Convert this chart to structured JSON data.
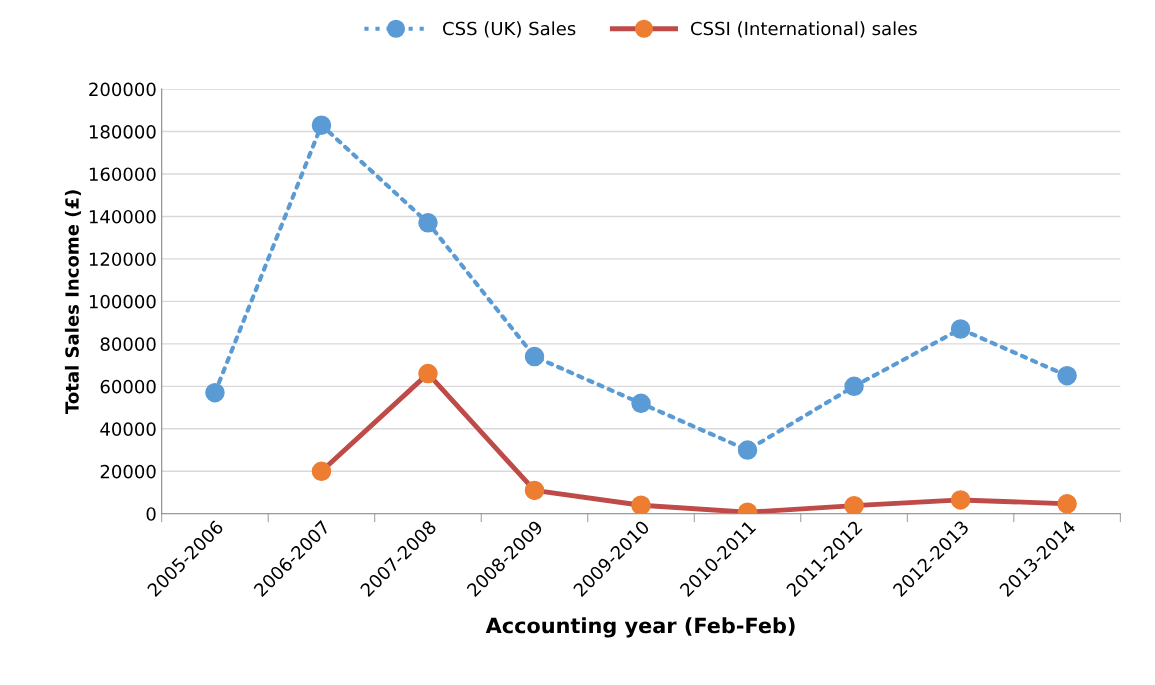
{
  "chart_data": {
    "type": "line",
    "xlabel": "Accounting year (Feb-Feb)",
    "ylabel": "Total Sales Income (£)",
    "categories": [
      "2005-2006",
      "2006-2007",
      "2007-2008",
      "2008-2009",
      "2009-2010",
      "2010-2011",
      "2011-2012",
      "2012-2013",
      "2013-2014"
    ],
    "series": [
      {
        "name": "CSS (UK) Sales",
        "color": "#5b9bd5",
        "line_style": "dotted",
        "values": [
          57000,
          183000,
          137000,
          74000,
          52000,
          30000,
          60000,
          87000,
          65000
        ]
      },
      {
        "name": "CSSI (International) sales",
        "color": "#be4b48",
        "colors": [
          null,
          "#ed7d31",
          "#ed7d31",
          "#ed7d31",
          "#ed7d31",
          "#ed7d31",
          "#ed7d31",
          "#ed7d31",
          "#ed7d31"
        ],
        "line_style": "solid",
        "values": [
          null,
          20000,
          66000,
          11000,
          4000,
          700,
          3800,
          6500,
          4700
        ]
      }
    ],
    "ylim": [
      0,
      200000
    ],
    "yticks": [
      0,
      20000,
      40000,
      60000,
      80000,
      100000,
      120000,
      140000,
      160000,
      180000,
      200000
    ],
    "grid": "y",
    "legend": "top",
    "marker": "circle"
  }
}
